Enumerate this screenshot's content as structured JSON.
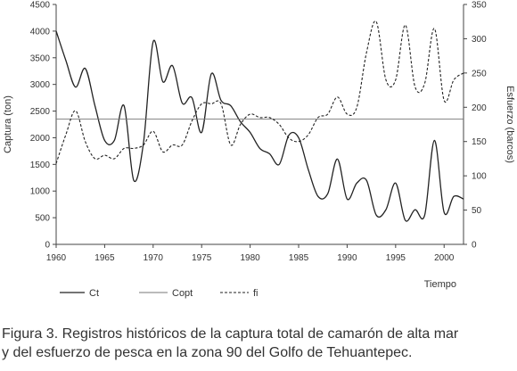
{
  "chart_data": {
    "type": "line",
    "x_range": [
      1960,
      2002
    ],
    "x_ticks": [
      1960,
      1965,
      1970,
      1975,
      1980,
      1985,
      1990,
      1995,
      2000
    ],
    "xlabel": "Tiempo",
    "ylabel_left": "Captura (ton)",
    "ylim_left": [
      0,
      4500
    ],
    "y_ticks_left": [
      0,
      500,
      1000,
      1500,
      2000,
      2500,
      3000,
      3500,
      4000,
      4500
    ],
    "ylabel_right": "Esfuerzo (barcos)",
    "ylim_right": [
      0,
      350
    ],
    "y_ticks_right": [
      0,
      50,
      100,
      150,
      200,
      250,
      300,
      350
    ],
    "grid": false,
    "legend_position": "bottom-left",
    "series": [
      {
        "name": "Ct",
        "axis": "left",
        "style": "solid",
        "x": [
          1960,
          1961,
          1962,
          1963,
          1964,
          1965,
          1966,
          1967,
          1968,
          1969,
          1970,
          1971,
          1972,
          1973,
          1974,
          1975,
          1976,
          1977,
          1978,
          1979,
          1980,
          1981,
          1982,
          1983,
          1984,
          1985,
          1986,
          1987,
          1988,
          1989,
          1990,
          1991,
          1992,
          1993,
          1994,
          1995,
          1996,
          1997,
          1998,
          1999,
          2000,
          2001,
          2002
        ],
        "values": [
          4000,
          3450,
          2950,
          3300,
          2600,
          1950,
          1950,
          2600,
          1200,
          1900,
          3800,
          3050,
          3350,
          2650,
          2750,
          2100,
          3200,
          2700,
          2600,
          2300,
          2100,
          1800,
          1700,
          1500,
          2050,
          2000,
          1400,
          900,
          950,
          1600,
          850,
          1150,
          1200,
          550,
          650,
          1150,
          450,
          650,
          550,
          1950,
          600,
          900,
          850
        ]
      },
      {
        "name": "Copt",
        "axis": "left",
        "style": "thin",
        "x": [
          1960,
          2002
        ],
        "values": [
          2350,
          2350
        ]
      },
      {
        "name": "fi",
        "axis": "right",
        "style": "dashed",
        "x": [
          1960,
          1961,
          1962,
          1963,
          1964,
          1965,
          1966,
          1967,
          1968,
          1969,
          1970,
          1971,
          1972,
          1973,
          1974,
          1975,
          1976,
          1977,
          1978,
          1979,
          1980,
          1981,
          1982,
          1983,
          1984,
          1985,
          1986,
          1987,
          1988,
          1989,
          1990,
          1991,
          1992,
          1993,
          1994,
          1995,
          1996,
          1997,
          1998,
          1999,
          2000,
          2001,
          2002
        ],
        "values": [
          118,
          160,
          195,
          150,
          125,
          130,
          125,
          140,
          140,
          145,
          165,
          135,
          145,
          145,
          180,
          205,
          205,
          205,
          145,
          175,
          190,
          185,
          185,
          175,
          155,
          150,
          160,
          185,
          190,
          215,
          190,
          200,
          280,
          325,
          240,
          240,
          320,
          230,
          235,
          315,
          210,
          240,
          250
        ]
      }
    ]
  },
  "caption": {
    "line1": "Figura 3. Registros históricos de la captura total de camarón de alta mar",
    "line2": "y del esfuerzo de pesca en la zona 90 del Golfo de Tehuantepec."
  }
}
